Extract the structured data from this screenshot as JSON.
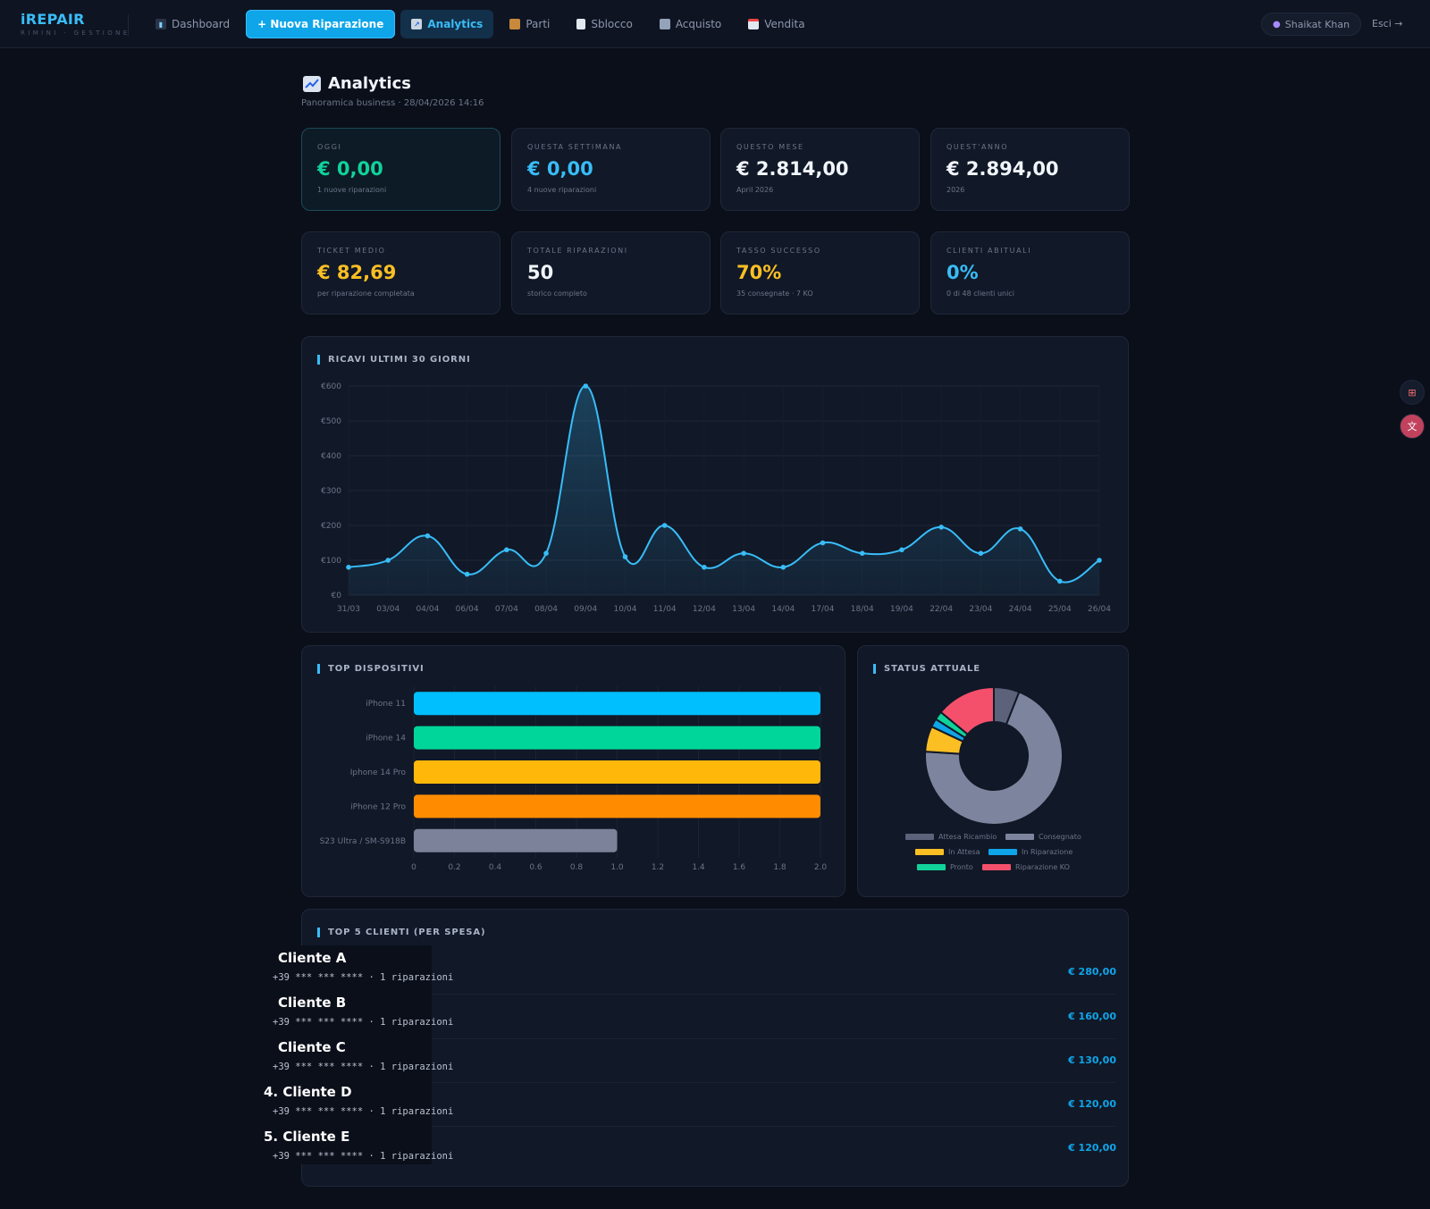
{
  "brand": {
    "title": "iREPAIR",
    "subtitle": "RIMINI · GESTIONE"
  },
  "nav": {
    "items": [
      {
        "label": "Dashboard",
        "icon": "bar-chart-icon"
      },
      {
        "label": "+ Nuova Riparazione",
        "icon": "plus-icon"
      },
      {
        "label": "Analytics",
        "icon": "trend-chart-icon"
      },
      {
        "label": "Parti",
        "icon": "package-icon"
      },
      {
        "label": "Sblocco",
        "icon": "document-icon"
      },
      {
        "label": "Acquisto",
        "icon": "robot-icon"
      },
      {
        "label": "Vendita",
        "icon": "calendar-icon"
      }
    ],
    "user": "Shaikat Khan",
    "logout": "Esci →"
  },
  "page": {
    "title": "Analytics",
    "subtitle": "Panoramica business · 28/04/2026 14:16"
  },
  "kpis": [
    {
      "label": "OGGI",
      "value": "€ 0,00",
      "note": "1 nuove riparazioni",
      "color": "#10d39a"
    },
    {
      "label": "QUESTA SETTIMANA",
      "value": "€ 0,00",
      "note": "4 nuove riparazioni",
      "color": "#38bdf8"
    },
    {
      "label": "QUESTO MESE",
      "value": "€ 2.814,00",
      "note": "April 2026",
      "color": "#f1f5fb"
    },
    {
      "label": "QUEST'ANNO",
      "value": "€ 2.894,00",
      "note": "2026",
      "color": "#f1f5fb"
    },
    {
      "label": "TICKET MEDIO",
      "value": "€ 82,69",
      "note": "per riparazione completata",
      "color": "#fbbf24"
    },
    {
      "label": "TOTALE RIPARAZIONI",
      "value": "50",
      "note": "storico completo",
      "color": "#f1f5fb"
    },
    {
      "label": "TASSO SUCCESSO",
      "value": "70%",
      "note": "35 consegnate · 7 KO",
      "color": "#fbbf24"
    },
    {
      "label": "CLIENTI ABITUALI",
      "value": "0%",
      "note": "0 di 48 clienti unici",
      "color": "#38bdf8"
    }
  ],
  "revenue_panel": {
    "title": "RICAVI ULTIMI 30 GIORNI"
  },
  "devices_panel": {
    "title": "TOP DISPOSITIVI"
  },
  "status_panel": {
    "title": "STATUS ATTUALE"
  },
  "clients_panel": {
    "title": "TOP 5 CLIENTI (PER SPESA)"
  },
  "clients": [
    {
      "name": "Cliente A",
      "meta": "+39 *** *** **** · 1 riparazioni",
      "amount": "€ 280,00"
    },
    {
      "name": "Cliente B",
      "meta": "+39 *** *** **** · 1 riparazioni",
      "amount": "€ 160,00"
    },
    {
      "name": "Cliente C",
      "meta": "+39 *** *** **** · 1 riparazioni",
      "amount": "€ 130,00"
    },
    {
      "name": "4. Cliente D",
      "meta": "+39 *** *** **** · 1 riparazioni",
      "amount": "€ 120,00"
    },
    {
      "name": "5. Cliente E",
      "meta": "+39 *** *** **** · 1 riparazioni",
      "amount": "€ 120,00"
    }
  ],
  "chart_data": [
    {
      "type": "area",
      "title": "RICAVI ULTIMI 30 GIORNI",
      "x": [
        "31/03",
        "03/04",
        "04/04",
        "06/04",
        "07/04",
        "08/04",
        "09/04",
        "10/04",
        "11/04",
        "12/04",
        "13/04",
        "14/04",
        "17/04",
        "18/04",
        "19/04",
        "22/04",
        "23/04",
        "24/04",
        "25/04",
        "26/04"
      ],
      "values": [
        80,
        100,
        170,
        60,
        130,
        120,
        600,
        110,
        200,
        80,
        120,
        80,
        150,
        120,
        130,
        195,
        120,
        190,
        40,
        100
      ],
      "y_ticks": [
        "€0",
        "€100",
        "€200",
        "€300",
        "€400",
        "€500",
        "€600"
      ],
      "ylim": [
        0,
        600
      ],
      "color": "#38bdf8",
      "grid": true
    },
    {
      "type": "bar",
      "orientation": "horizontal",
      "title": "TOP DISPOSITIVI",
      "categories": [
        "iPhone 11",
        "iPhone 14",
        "Iphone 14 Pro",
        "iPhone 12 Pro",
        "S23 Ultra / SM-S918B"
      ],
      "values": [
        2,
        2,
        2,
        2,
        1
      ],
      "colors": [
        "#00bfff",
        "#00d69a",
        "#ffb80a",
        "#ff8c00",
        "#7c8299"
      ],
      "x_ticks": [
        "0",
        "0.2",
        "0.4",
        "0.6",
        "0.8",
        "1.0",
        "1.2",
        "1.4",
        "1.6",
        "1.8",
        "2.0"
      ],
      "xlim": [
        0,
        2
      ],
      "grid": true
    },
    {
      "type": "pie",
      "variant": "doughnut",
      "title": "STATUS ATTUALE",
      "labels": [
        "Attesa Ricambio",
        "Consegnato",
        "In Attesa",
        "In Riparazione",
        "Pronto",
        "Riparazione KO"
      ],
      "values": [
        3,
        35,
        3,
        1,
        1,
        7
      ],
      "colors": [
        "#5b627a",
        "#7d859e",
        "#fbbf24",
        "#0ea5e9",
        "#10d39a",
        "#f4506c"
      ],
      "legend": "bottom"
    }
  ]
}
